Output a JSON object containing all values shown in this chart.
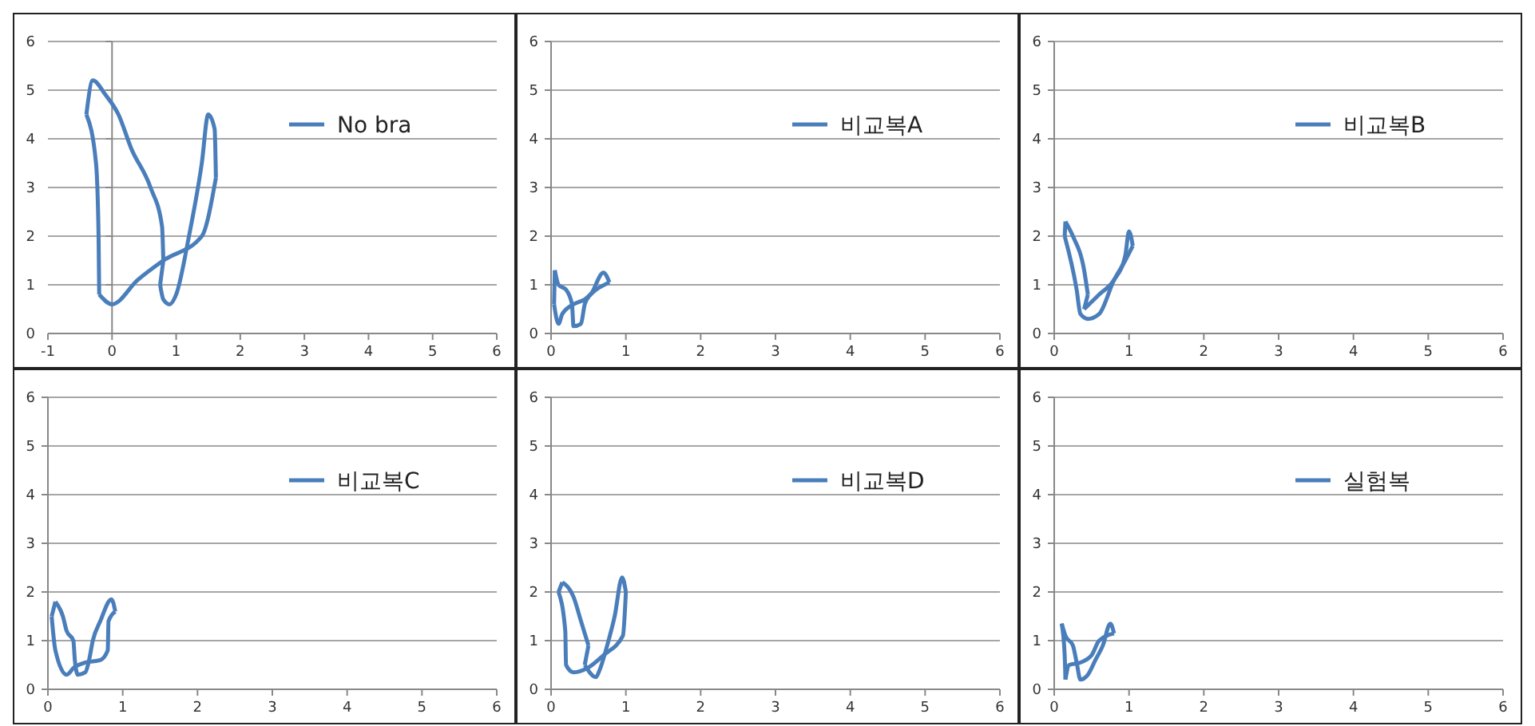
{
  "chart_data": [
    {
      "type": "line",
      "series": [
        {
          "name": "No bra",
          "color": "#4a7ebb",
          "x": [
            -0.4,
            -0.3,
            -0.1,
            0.1,
            0.3,
            0.6,
            0.78,
            0.8
          ],
          "values": [
            4.5,
            5.2,
            4.9,
            4.5,
            3.8,
            3,
            2.2,
            1.5
          ]
        },
        {
          "color": "#4a7ebb",
          "x": [
            0.75,
            0.8
          ],
          "values": [
            1,
            1.5
          ]
        },
        {
          "color": "#4a7ebb",
          "x": [
            0.75,
            0.8,
            0.9,
            1,
            1.2,
            1.4,
            1.5,
            1.6,
            1.62
          ],
          "values": [
            1,
            0.7,
            0.6,
            0.8,
            2,
            3.5,
            4.5,
            4.2,
            3.2
          ]
        },
        {
          "color": "#4a7ebb",
          "x": [
            -0.2,
            0,
            0.4,
            0.8,
            1.4,
            1.62
          ],
          "values": [
            0.8,
            0.6,
            1.1,
            1.5,
            2,
            3.2
          ]
        },
        {
          "color": "#4a7ebb",
          "x": [
            -0.4,
            -0.25,
            -0.21,
            -0.2
          ],
          "values": [
            4.5,
            3.5,
            2,
            0.8
          ]
        }
      ],
      "xlim": [
        -1,
        6
      ],
      "xticks": [
        -1,
        0,
        1,
        2,
        3,
        4,
        5,
        6
      ],
      "ylim": [
        0,
        6
      ],
      "yticks": [
        0,
        1,
        2,
        3,
        4,
        5,
        6
      ],
      "grid": "y",
      "legend": "top right",
      "marker": "none"
    },
    {
      "type": "line",
      "series": [
        {
          "name": "비교복A",
          "color": "#4a7ebb",
          "x": [
            0.05,
            0.1,
            0.2,
            0.28,
            0.3,
            0.4,
            0.45,
            0.55,
            0.7,
            0.78
          ],
          "values": [
            1.3,
            1.0,
            0.9,
            0.6,
            0.15,
            0.2,
            0.6,
            0.85,
            1.25,
            1.05
          ]
        },
        {
          "color": "#4a7ebb",
          "x": [
            0.04,
            0.1,
            0.15,
            0.3,
            0.45,
            0.6,
            0.78
          ],
          "values": [
            0.6,
            0.2,
            0.4,
            0.6,
            0.7,
            0.9,
            1.05
          ]
        },
        {
          "color": "#4a7ebb",
          "x": [
            0.04,
            0.05
          ],
          "values": [
            0.6,
            1.3
          ]
        }
      ],
      "xlim": [
        0,
        6
      ],
      "xticks": [
        0,
        1,
        2,
        3,
        4,
        5,
        6
      ],
      "ylim": [
        0,
        6
      ],
      "yticks": [
        0,
        1,
        2,
        3,
        4,
        5,
        6
      ],
      "grid": "y",
      "legend": "top right",
      "marker": "none"
    },
    {
      "type": "line",
      "series": [
        {
          "name": "비교복B",
          "color": "#4a7ebb",
          "x": [
            0.15,
            0.25,
            0.4,
            0.45
          ],
          "values": [
            2.3,
            2,
            1.3,
            0.8
          ]
        },
        {
          "color": "#4a7ebb",
          "x": [
            0.4,
            0.45
          ],
          "values": [
            0.5,
            0.8
          ]
        },
        {
          "color": "#4a7ebb",
          "x": [
            0.4,
            0.6,
            0.8,
            0.95,
            1,
            1.05
          ],
          "values": [
            0.5,
            0.8,
            1.1,
            1.6,
            2.1,
            1.8
          ]
        },
        {
          "color": "#4a7ebb",
          "x": [
            0.14,
            0.3,
            0.35,
            0.45,
            0.6,
            0.8,
            0.95,
            1.05
          ],
          "values": [
            2,
            0.9,
            0.4,
            0.3,
            0.4,
            1.1,
            1.5,
            1.8
          ]
        },
        {
          "color": "#4a7ebb",
          "x": [
            0.14,
            0.15
          ],
          "values": [
            2,
            2.3
          ]
        }
      ],
      "xlim": [
        0,
        6
      ],
      "xticks": [
        0,
        1,
        2,
        3,
        4,
        5,
        6
      ],
      "ylim": [
        0,
        6
      ],
      "yticks": [
        0,
        1,
        2,
        3,
        4,
        5,
        6
      ],
      "grid": "y",
      "legend": "top right",
      "marker": "none"
    },
    {
      "type": "line",
      "series": [
        {
          "name": "비교복C",
          "color": "#4a7ebb",
          "x": [
            0.1,
            0.2,
            0.25,
            0.34,
            0.36,
            0.4,
            0.5,
            0.55,
            0.6,
            0.7,
            0.85,
            0.9
          ],
          "values": [
            1.8,
            1.5,
            1.2,
            1,
            0.6,
            0.3,
            0.35,
            0.6,
            1,
            1.4,
            1.85,
            1.6
          ]
        },
        {
          "color": "#4a7ebb",
          "x": [
            0.05,
            0.1,
            0.25,
            0.35,
            0.5,
            0.7,
            0.8,
            0.81,
            0.9
          ],
          "values": [
            1.5,
            0.8,
            0.3,
            0.45,
            0.55,
            0.6,
            0.8,
            1.4,
            1.6
          ]
        },
        {
          "color": "#4a7ebb",
          "x": [
            0.05,
            0.1
          ],
          "values": [
            1.5,
            1.8
          ]
        }
      ],
      "xlim": [
        0,
        6
      ],
      "xticks": [
        0,
        1,
        2,
        3,
        4,
        5,
        6
      ],
      "ylim": [
        0,
        6
      ],
      "yticks": [
        0,
        1,
        2,
        3,
        4,
        5,
        6
      ],
      "grid": "y",
      "legend": "top right",
      "marker": "none"
    },
    {
      "type": "line",
      "series": [
        {
          "name": "비교복D",
          "color": "#4a7ebb",
          "x": [
            0.15,
            0.3,
            0.4,
            0.5
          ],
          "values": [
            2.2,
            1.9,
            1.4,
            0.9
          ]
        },
        {
          "color": "#4a7ebb",
          "x": [
            0.45,
            0.5
          ],
          "values": [
            0.5,
            0.9
          ]
        },
        {
          "color": "#4a7ebb",
          "x": [
            0.45,
            0.6,
            0.65,
            0.75,
            0.85,
            0.95,
            1
          ],
          "values": [
            0.5,
            0.25,
            0.4,
            0.9,
            1.5,
            2.3,
            2
          ]
        },
        {
          "color": "#4a7ebb",
          "x": [
            0.1,
            0.19,
            0.2,
            0.3,
            0.5,
            0.7,
            0.96,
            1
          ],
          "values": [
            2,
            1.2,
            0.5,
            0.35,
            0.45,
            0.7,
            1.1,
            2
          ]
        },
        {
          "color": "#4a7ebb",
          "x": [
            0.1,
            0.15
          ],
          "values": [
            2,
            2.2
          ]
        }
      ],
      "xlim": [
        0,
        6
      ],
      "xticks": [
        0,
        1,
        2,
        3,
        4,
        5,
        6
      ],
      "ylim": [
        0,
        6
      ],
      "yticks": [
        0,
        1,
        2,
        3,
        4,
        5,
        6
      ],
      "grid": "y",
      "legend": "top right",
      "marker": "none"
    },
    {
      "type": "line",
      "series": [
        {
          "name": "실험복",
          "color": "#4a7ebb",
          "x": [
            0.1,
            0.15,
            0.25,
            0.3,
            0.35,
            0.45,
            0.55,
            0.65,
            0.75,
            0.8
          ],
          "values": [
            1.35,
            1.1,
            0.9,
            0.55,
            0.2,
            0.3,
            0.6,
            0.9,
            1.35,
            1.15
          ]
        },
        {
          "color": "#4a7ebb",
          "x": [
            0.15,
            0.2,
            0.35,
            0.5,
            0.6,
            0.8
          ],
          "values": [
            0.2,
            0.5,
            0.55,
            0.7,
            1,
            1.15
          ]
        },
        {
          "color": "#4a7ebb",
          "x": [
            0.1,
            0.14,
            0.15
          ],
          "values": [
            1.35,
            0.7,
            0.2
          ]
        }
      ],
      "xlim": [
        0,
        6
      ],
      "xticks": [
        0,
        1,
        2,
        3,
        4,
        5,
        6
      ],
      "ylim": [
        0,
        6
      ],
      "yticks": [
        0,
        1,
        2,
        3,
        4,
        5,
        6
      ],
      "grid": "y",
      "legend": "top right",
      "marker": "none"
    }
  ]
}
